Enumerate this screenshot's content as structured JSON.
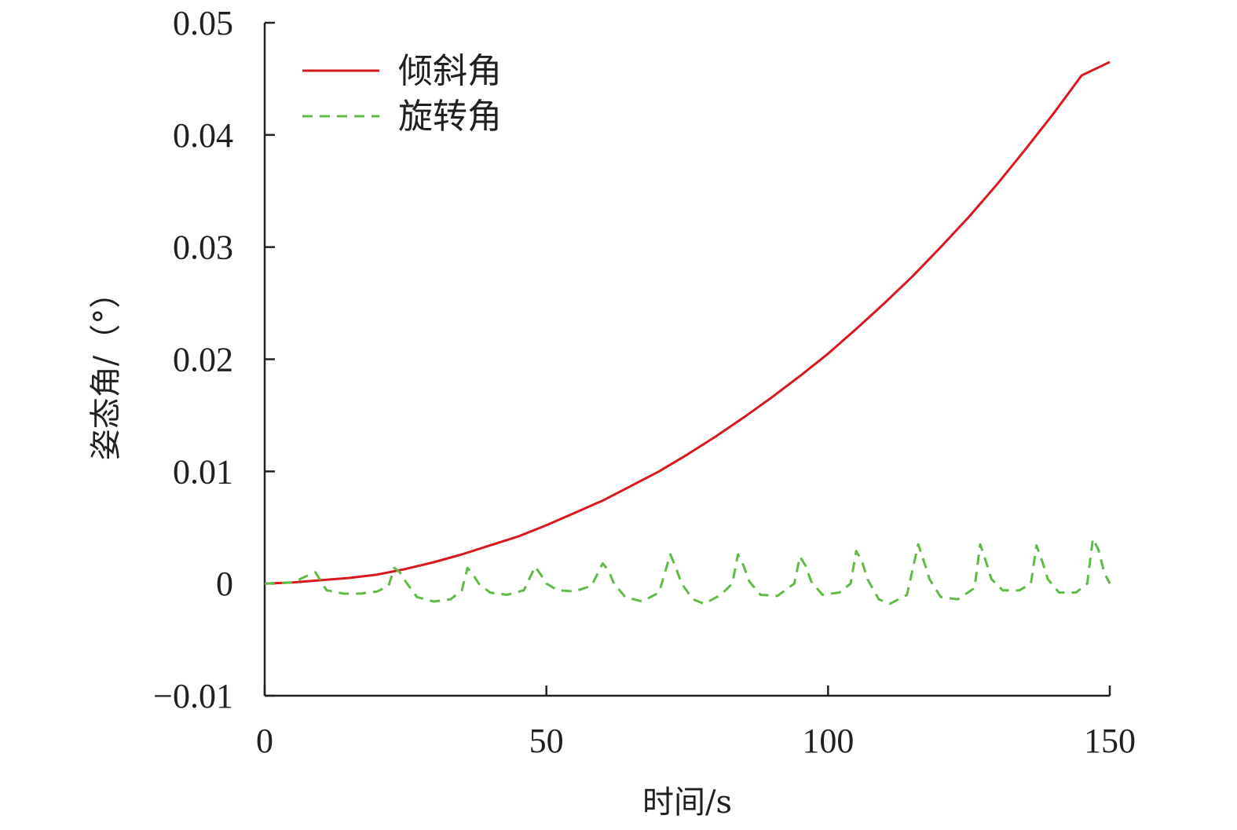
{
  "chart_data": {
    "type": "line",
    "title": "",
    "xlabel": "时间/s",
    "ylabel": "姿态角/（°）",
    "xlim": [
      0,
      150
    ],
    "ylim": [
      -0.01,
      0.05
    ],
    "xticks": [
      0,
      50,
      100,
      150
    ],
    "xtick_labels": [
      "0",
      "50",
      "100",
      "150"
    ],
    "yticks": [
      -0.01,
      0,
      0.01,
      0.02,
      0.03,
      0.04,
      0.05
    ],
    "ytick_labels": [
      "−0.01",
      "0",
      "0.01",
      "0.02",
      "0.03",
      "0.04",
      "0.05"
    ],
    "grid": false,
    "legend_position": "top-left",
    "series": [
      {
        "name": "倾斜角",
        "color": "#d7191f",
        "style": "solid",
        "points": [
          [
            0,
            0.0
          ],
          [
            5,
            0.0001
          ],
          [
            10,
            0.0003
          ],
          [
            15,
            0.0005
          ],
          [
            20,
            0.0008
          ],
          [
            25,
            0.0013
          ],
          [
            30,
            0.0019
          ],
          [
            35,
            0.0026
          ],
          [
            40,
            0.0034
          ],
          [
            45,
            0.0042
          ],
          [
            50,
            0.0052
          ],
          [
            55,
            0.0063
          ],
          [
            60,
            0.0074
          ],
          [
            65,
            0.0087
          ],
          [
            70,
            0.01
          ],
          [
            75,
            0.0115
          ],
          [
            80,
            0.0131
          ],
          [
            85,
            0.0148
          ],
          [
            90,
            0.0166
          ],
          [
            95,
            0.0185
          ],
          [
            100,
            0.0205
          ],
          [
            105,
            0.0227
          ],
          [
            110,
            0.025
          ],
          [
            115,
            0.0274
          ],
          [
            120,
            0.03
          ],
          [
            125,
            0.0327
          ],
          [
            130,
            0.0356
          ],
          [
            135,
            0.0387
          ],
          [
            140,
            0.0419
          ],
          [
            145,
            0.0453
          ],
          [
            150,
            0.0465
          ]
        ]
      },
      {
        "name": "旋转角",
        "color": "#5fba46",
        "style": "dashed",
        "points": [
          [
            0,
            0.0
          ],
          [
            5,
            0.0001
          ],
          [
            8,
            0.0008
          ],
          [
            9,
            0.001
          ],
          [
            10,
            0.0002
          ],
          [
            11,
            -0.0006
          ],
          [
            14,
            -0.0009
          ],
          [
            17,
            -0.0009
          ],
          [
            20,
            -0.0007
          ],
          [
            22,
            -0.0002
          ],
          [
            23,
            0.0014
          ],
          [
            24,
            0.001
          ],
          [
            25,
            0.0002
          ],
          [
            27,
            -0.0012
          ],
          [
            30,
            -0.0016
          ],
          [
            33,
            -0.0014
          ],
          [
            35,
            -0.0006
          ],
          [
            36,
            0.0014
          ],
          [
            37,
            0.0008
          ],
          [
            38,
            0.0
          ],
          [
            40,
            -0.0008
          ],
          [
            43,
            -0.001
          ],
          [
            46,
            -0.0006
          ],
          [
            48,
            0.0015
          ],
          [
            49,
            0.0008
          ],
          [
            50,
            0.0
          ],
          [
            52,
            -0.0006
          ],
          [
            55,
            -0.0007
          ],
          [
            58,
            -0.0002
          ],
          [
            60,
            0.0018
          ],
          [
            61,
            0.0012
          ],
          [
            62,
            0.0
          ],
          [
            64,
            -0.0012
          ],
          [
            67,
            -0.0016
          ],
          [
            70,
            -0.0008
          ],
          [
            72,
            0.0026
          ],
          [
            73,
            0.0014
          ],
          [
            74,
            0.0
          ],
          [
            76,
            -0.0014
          ],
          [
            78,
            -0.0018
          ],
          [
            81,
            -0.001
          ],
          [
            83,
            0.0
          ],
          [
            84,
            0.0026
          ],
          [
            85,
            0.0016
          ],
          [
            86,
            0.0002
          ],
          [
            88,
            -0.001
          ],
          [
            91,
            -0.0011
          ],
          [
            94,
            0.0
          ],
          [
            95,
            0.0024
          ],
          [
            96,
            0.0016
          ],
          [
            97,
            0.0002
          ],
          [
            99,
            -0.001
          ],
          [
            102,
            -0.0008
          ],
          [
            104,
            0.0
          ],
          [
            105,
            0.0029
          ],
          [
            106,
            0.002
          ],
          [
            107,
            0.0004
          ],
          [
            109,
            -0.0014
          ],
          [
            111,
            -0.0018
          ],
          [
            114,
            -0.001
          ],
          [
            116,
            0.0035
          ],
          [
            117,
            0.002
          ],
          [
            118,
            0.0004
          ],
          [
            120,
            -0.0012
          ],
          [
            123,
            -0.0014
          ],
          [
            126,
            -0.0004
          ],
          [
            127,
            0.0035
          ],
          [
            128,
            0.002
          ],
          [
            129,
            0.0004
          ],
          [
            131,
            -0.0006
          ],
          [
            134,
            -0.0006
          ],
          [
            136,
            0.0
          ],
          [
            137,
            0.0034
          ],
          [
            138,
            0.002
          ],
          [
            139,
            0.0004
          ],
          [
            141,
            -0.0008
          ],
          [
            144,
            -0.0008
          ],
          [
            146,
            0.0
          ],
          [
            147,
            0.004
          ],
          [
            148,
            0.003
          ],
          [
            149,
            0.001
          ],
          [
            150,
            0.0
          ]
        ]
      }
    ]
  }
}
